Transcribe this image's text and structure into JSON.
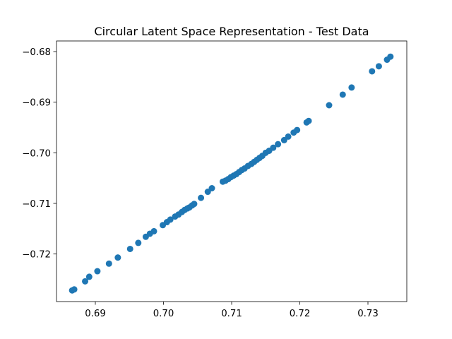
{
  "chart_data": {
    "type": "scatter",
    "title": "Circular Latent Space Representation - Test Data",
    "xlabel": "",
    "ylabel": "",
    "xlim": [
      0.6843,
      0.7357
    ],
    "ylim": [
      -0.7294,
      -0.6779
    ],
    "grid": false,
    "legend": "none",
    "marker_color": "#1f77b4",
    "x_ticks": [
      {
        "value": 0.69,
        "label": "0.69"
      },
      {
        "value": 0.7,
        "label": "0.70"
      },
      {
        "value": 0.71,
        "label": "0.71"
      },
      {
        "value": 0.72,
        "label": "0.72"
      },
      {
        "value": 0.73,
        "label": "0.73"
      }
    ],
    "y_ticks": [
      {
        "value": -0.68,
        "label": "−0.68"
      },
      {
        "value": -0.69,
        "label": "−0.69"
      },
      {
        "value": -0.7,
        "label": "−0.70"
      },
      {
        "value": -0.71,
        "label": "−0.71"
      },
      {
        "value": -0.72,
        "label": "−0.72"
      }
    ],
    "points": [
      [
        0.6866,
        -0.7272
      ],
      [
        0.6869,
        -0.727
      ],
      [
        0.6885,
        -0.7254
      ],
      [
        0.6891,
        -0.7245
      ],
      [
        0.6903,
        -0.7234
      ],
      [
        0.692,
        -0.7219
      ],
      [
        0.6933,
        -0.7207
      ],
      [
        0.6951,
        -0.719
      ],
      [
        0.6963,
        -0.7178
      ],
      [
        0.6974,
        -0.7166
      ],
      [
        0.698,
        -0.716
      ],
      [
        0.6986,
        -0.7155
      ],
      [
        0.6999,
        -0.7143
      ],
      [
        0.7005,
        -0.7137
      ],
      [
        0.701,
        -0.7132
      ],
      [
        0.7017,
        -0.7126
      ],
      [
        0.7022,
        -0.7122
      ],
      [
        0.7027,
        -0.7117
      ],
      [
        0.7031,
        -0.7113
      ],
      [
        0.7035,
        -0.711
      ],
      [
        0.7038,
        -0.7108
      ],
      [
        0.7042,
        -0.7104
      ],
      [
        0.7045,
        -0.7101
      ],
      [
        0.7055,
        -0.7089
      ],
      [
        0.7065,
        -0.7077
      ],
      [
        0.7071,
        -0.707
      ],
      [
        0.7087,
        -0.7057
      ],
      [
        0.7091,
        -0.7055
      ],
      [
        0.7095,
        -0.7052
      ],
      [
        0.7099,
        -0.7048
      ],
      [
        0.7103,
        -0.7045
      ],
      [
        0.7107,
        -0.7042
      ],
      [
        0.7111,
        -0.7038
      ],
      [
        0.7115,
        -0.7034
      ],
      [
        0.7119,
        -0.7031
      ],
      [
        0.7124,
        -0.7026
      ],
      [
        0.7129,
        -0.7022
      ],
      [
        0.7133,
        -0.7018
      ],
      [
        0.7137,
        -0.7014
      ],
      [
        0.7141,
        -0.701
      ],
      [
        0.7145,
        -0.7006
      ],
      [
        0.715,
        -0.7
      ],
      [
        0.7155,
        -0.6996
      ],
      [
        0.7161,
        -0.699
      ],
      [
        0.7168,
        -0.6983
      ],
      [
        0.7177,
        -0.6975
      ],
      [
        0.7183,
        -0.6968
      ],
      [
        0.7191,
        -0.696
      ],
      [
        0.7196,
        -0.6955
      ],
      [
        0.721,
        -0.694
      ],
      [
        0.7213,
        -0.6937
      ],
      [
        0.7243,
        -0.6906
      ],
      [
        0.7263,
        -0.6885
      ],
      [
        0.7276,
        -0.6871
      ],
      [
        0.7306,
        -0.6839
      ],
      [
        0.7316,
        -0.6829
      ],
      [
        0.7328,
        -0.6816
      ],
      [
        0.7333,
        -0.681
      ]
    ]
  }
}
